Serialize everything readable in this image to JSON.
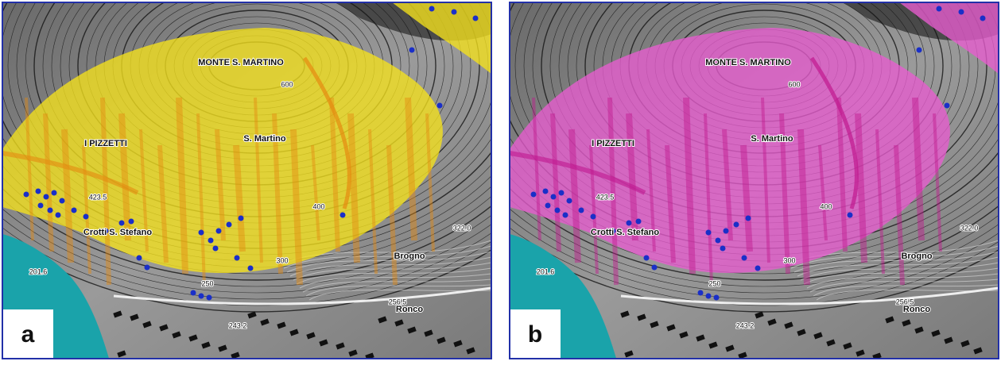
{
  "panels": [
    {
      "label": "a",
      "overlay_color": "#f5e21c",
      "streak_color": "#e58a10"
    },
    {
      "label": "b",
      "overlay_color": "#e85ccf",
      "streak_color": "#c0188f"
    }
  ],
  "map_labels": [
    {
      "text": "MONTE S. MARTINO",
      "kind": "place"
    },
    {
      "text": "I PIZZETTI",
      "kind": "place"
    },
    {
      "text": "S. Martino",
      "kind": "place"
    },
    {
      "text": "Crotti S. Stefano",
      "kind": "place"
    },
    {
      "text": "Brogno",
      "kind": "place"
    },
    {
      "text": "Ronco",
      "kind": "place"
    },
    {
      "text": "201.6",
      "kind": "elev"
    },
    {
      "text": "400",
      "kind": "elev"
    },
    {
      "text": "300",
      "kind": "elev"
    },
    {
      "text": "250",
      "kind": "elev"
    },
    {
      "text": "322.0",
      "kind": "elev"
    },
    {
      "text": "256.5",
      "kind": "elev"
    },
    {
      "text": "243.2",
      "kind": "elev"
    },
    {
      "text": "423.5",
      "kind": "elev"
    },
    {
      "text": "600",
      "kind": "elev"
    }
  ]
}
